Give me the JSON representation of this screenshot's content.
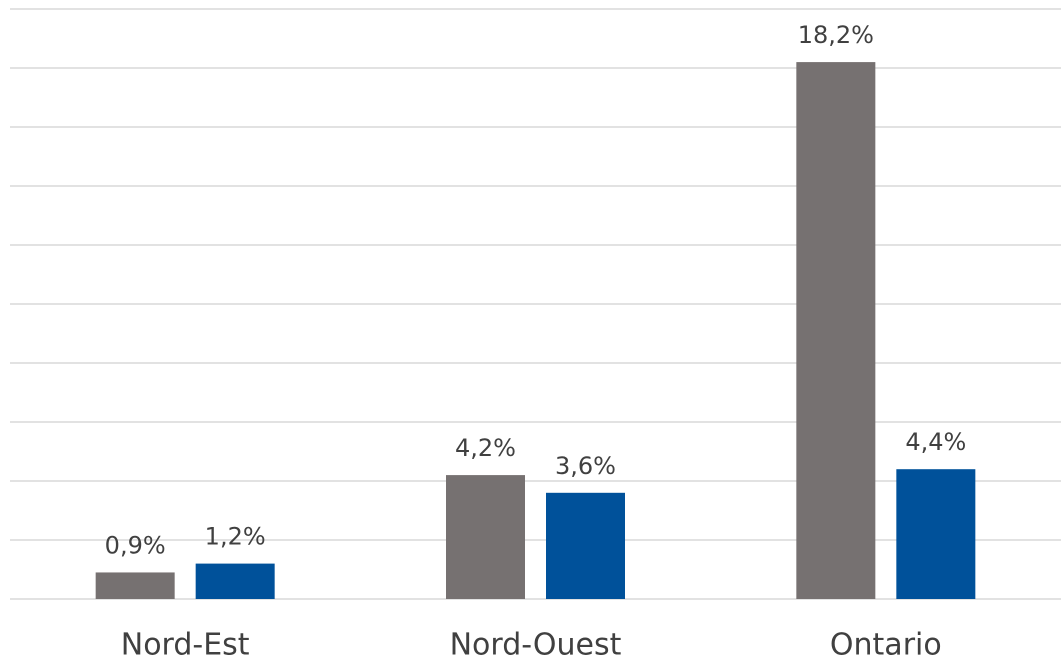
{
  "chart_data": {
    "type": "bar",
    "categories": [
      "Nord-Est",
      "Nord-Ouest",
      "Ontario"
    ],
    "series": [
      {
        "color": "#767171",
        "values": [
          0.9,
          4.2,
          18.2
        ],
        "value_labels": [
          "0,9%",
          "4,2%",
          "18,2%"
        ]
      },
      {
        "color": "#00519a",
        "values": [
          1.2,
          3.6,
          4.4
        ],
        "value_labels": [
          "1,2%",
          "3,6%",
          "4,4%"
        ]
      }
    ],
    "ylim": [
      0,
      20
    ],
    "yticks": [
      0,
      2,
      4,
      6,
      8,
      10,
      12,
      14,
      16,
      18,
      20
    ],
    "grid": true
  }
}
